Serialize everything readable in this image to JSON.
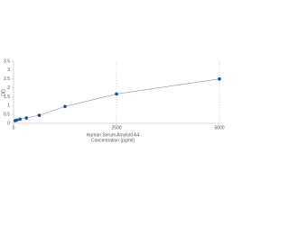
{
  "chart_data": {
    "type": "scatter",
    "xlabel": [
      "Human Serum Amyloid A4",
      "Concentration (pg/ml)"
    ],
    "ylabel": "OD",
    "x": [
      39,
      78,
      156,
      312,
      625,
      1250,
      2500,
      5000
    ],
    "series": [
      {
        "color": "#1f4e8c",
        "line_color": "#8a96a8",
        "values": [
          0.15,
          0.18,
          0.23,
          0.3,
          0.45,
          0.95,
          1.65,
          2.5
        ]
      }
    ],
    "xlim": [
      0,
      5000
    ],
    "xticks": [
      0,
      2500,
      5000
    ],
    "ylim": [
      0,
      3.5
    ],
    "yticks": [
      0,
      0.5,
      1,
      1.5,
      2,
      2.5,
      3,
      3.5
    ],
    "grid": "x"
  }
}
